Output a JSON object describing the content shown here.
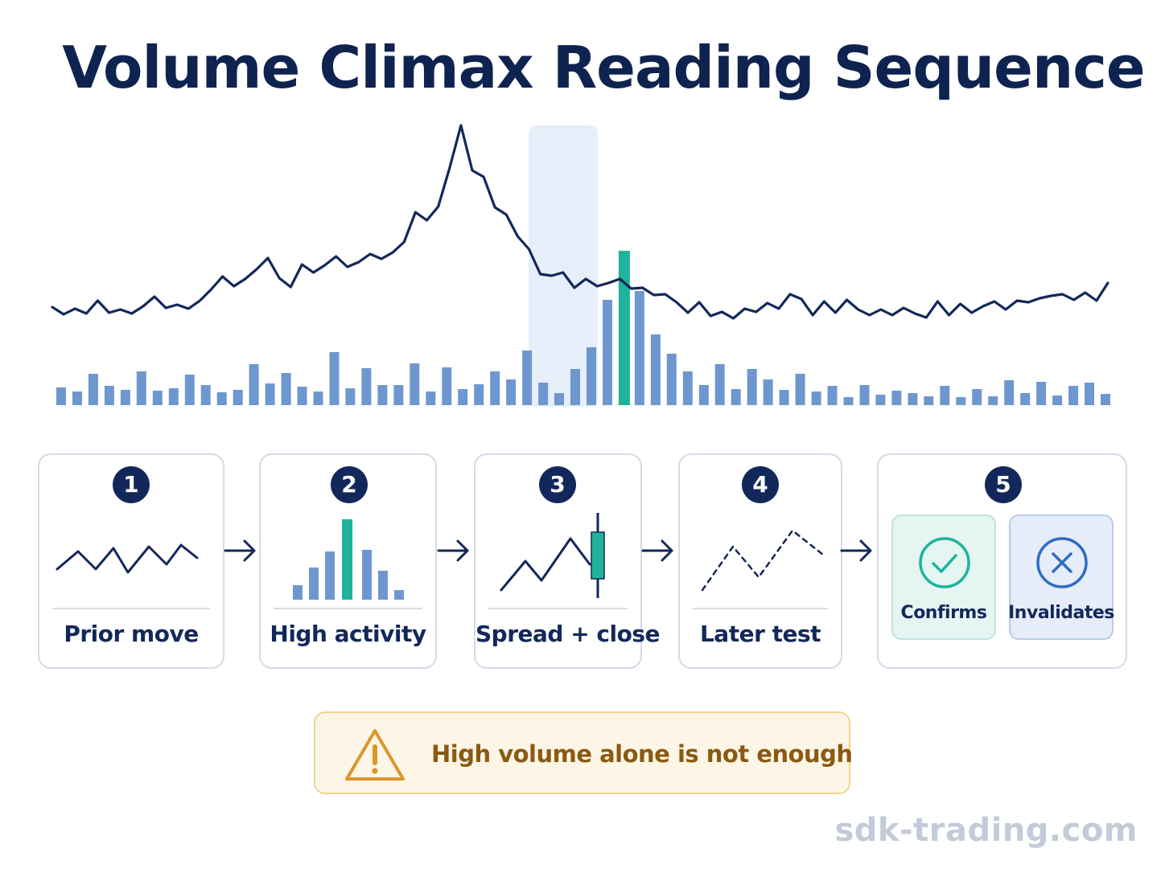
{
  "title": "Volume Climax Reading Sequence",
  "chart_data": {
    "type": "line",
    "series": [
      {
        "values": [
          18,
          9,
          16,
          10,
          26,
          11,
          15,
          10,
          19,
          31,
          17,
          21,
          16,
          26,
          40,
          56,
          44,
          53,
          65,
          79,
          54,
          43,
          71,
          61,
          70,
          81,
          68,
          74,
          84,
          78,
          86,
          99,
          136,
          126,
          143,
          191,
          244,
          188,
          180,
          142,
          133,
          106,
          90,
          59,
          57,
          61,
          42,
          53,
          44,
          48,
          53,
          41,
          42,
          33,
          34,
          24,
          11,
          24,
          7,
          12,
          4,
          16,
          12,
          23,
          16,
          34,
          28,
          8,
          25,
          11,
          27,
          15,
          8,
          15,
          8,
          17,
          10,
          5,
          25,
          8,
          22,
          11,
          19,
          25,
          15,
          26,
          24,
          29,
          32,
          34,
          27,
          36,
          26,
          48
        ]
      },
      {
        "values": [
          22,
          17,
          39,
          24,
          19,
          42,
          18,
          21,
          38,
          25,
          16,
          19,
          51,
          27,
          40,
          23,
          17,
          66,
          21,
          46,
          25,
          25,
          52,
          17,
          47,
          20,
          26,
          42,
          32,
          68,
          28,
          15,
          45,
          72,
          131,
          192,
          142,
          88,
          64,
          42,
          25,
          51,
          20,
          45,
          32,
          19,
          39,
          17,
          24,
          10,
          25,
          13,
          18,
          15,
          11,
          24,
          10,
          20,
          11,
          31,
          15,
          29,
          12,
          24,
          28,
          14
        ]
      }
    ]
  },
  "steps": [
    {
      "number": "1",
      "label": "Prior move"
    },
    {
      "number": "2",
      "label": "High activity"
    },
    {
      "number": "3",
      "label": "Spread + close"
    },
    {
      "number": "4",
      "label": "Later test"
    },
    {
      "number": "5",
      "outcomes": [
        {
          "label": "Confirms"
        },
        {
          "label": "Invalidates"
        }
      ]
    }
  ],
  "warning": {
    "text": "High volume alone is not enough"
  },
  "watermark": "sdk-trading.com",
  "colors": {
    "navy": "#13285a",
    "bar": "#6f97cf",
    "climax": "#1fb39b",
    "highlight": "#e6eefa",
    "warning": "#d9972b"
  }
}
